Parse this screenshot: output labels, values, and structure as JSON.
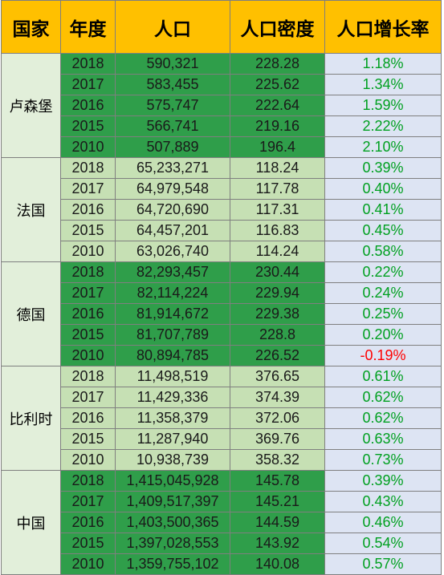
{
  "headers": [
    "国家",
    "年度",
    "人口",
    "人口密度",
    "人口增长率"
  ],
  "groups": [
    {
      "country": "卢森堡",
      "shade": "dark",
      "rows": [
        {
          "year": "2018",
          "population": "590,321",
          "density": "228.28",
          "growth": "1.18%"
        },
        {
          "year": "2017",
          "population": "583,455",
          "density": "225.62",
          "growth": "1.34%"
        },
        {
          "year": "2016",
          "population": "575,747",
          "density": "222.64",
          "growth": "1.59%"
        },
        {
          "year": "2015",
          "population": "566,741",
          "density": "219.16",
          "growth": "2.22%"
        },
        {
          "year": "2010",
          "population": "507,889",
          "density": "196.4",
          "growth": "2.10%"
        }
      ]
    },
    {
      "country": "法国",
      "shade": "light",
      "rows": [
        {
          "year": "2018",
          "population": "65,233,271",
          "density": "118.24",
          "growth": "0.39%"
        },
        {
          "year": "2017",
          "population": "64,979,548",
          "density": "117.78",
          "growth": "0.40%"
        },
        {
          "year": "2016",
          "population": "64,720,690",
          "density": "117.31",
          "growth": "0.41%"
        },
        {
          "year": "2015",
          "population": "64,457,201",
          "density": "116.83",
          "growth": "0.45%"
        },
        {
          "year": "2010",
          "population": "63,026,740",
          "density": "114.24",
          "growth": "0.58%"
        }
      ]
    },
    {
      "country": "德国",
      "shade": "dark",
      "rows": [
        {
          "year": "2018",
          "population": "82,293,457",
          "density": "230.44",
          "growth": "0.22%"
        },
        {
          "year": "2017",
          "population": "82,114,224",
          "density": "229.94",
          "growth": "0.24%"
        },
        {
          "year": "2016",
          "population": "81,914,672",
          "density": "229.38",
          "growth": "0.25%"
        },
        {
          "year": "2015",
          "population": "81,707,789",
          "density": "228.8",
          "growth": "0.20%"
        },
        {
          "year": "2010",
          "population": "80,894,785",
          "density": "226.52",
          "growth": "-0.19%"
        }
      ]
    },
    {
      "country": "比利时",
      "shade": "light",
      "rows": [
        {
          "year": "2018",
          "population": "11,498,519",
          "density": "376.65",
          "growth": "0.61%"
        },
        {
          "year": "2017",
          "population": "11,429,336",
          "density": "374.39",
          "growth": "0.62%"
        },
        {
          "year": "2016",
          "population": "11,358,379",
          "density": "372.06",
          "growth": "0.62%"
        },
        {
          "year": "2015",
          "population": "11,287,940",
          "density": "369.76",
          "growth": "0.63%"
        },
        {
          "year": "2010",
          "population": "10,938,739",
          "density": "358.32",
          "growth": "0.73%"
        }
      ]
    },
    {
      "country": "中国",
      "shade": "dark",
      "rows": [
        {
          "year": "2018",
          "population": "1,415,045,928",
          "density": "145.78",
          "growth": "0.39%"
        },
        {
          "year": "2017",
          "population": "1,409,517,397",
          "density": "145.21",
          "growth": "0.43%"
        },
        {
          "year": "2016",
          "population": "1,403,500,365",
          "density": "144.59",
          "growth": "0.46%"
        },
        {
          "year": "2015",
          "population": "1,397,028,553",
          "density": "143.92",
          "growth": "0.54%"
        },
        {
          "year": "2010",
          "population": "1,359,755,102",
          "density": "140.08",
          "growth": "0.57%"
        }
      ]
    }
  ],
  "colors": {
    "header_bg": "#ffc000",
    "dark_green": "#2f9e4a",
    "light_green": "#c6e0b4",
    "country_bg": "#e2efda",
    "rate_bg": "#dde4f3",
    "positive_text": "#00a020",
    "negative_text": "#ff0000"
  }
}
